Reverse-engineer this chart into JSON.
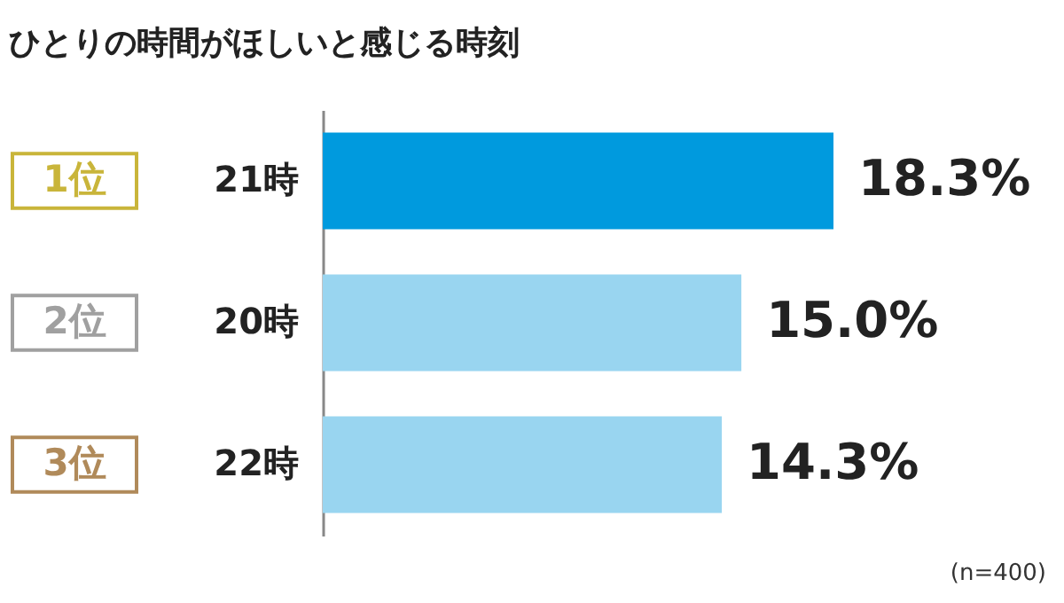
{
  "chart_data": {
    "type": "bar",
    "orientation": "horizontal",
    "title": "ひとりの時間がほしいと感じる時刻",
    "categories": [
      "21時",
      "20時",
      "22時"
    ],
    "values": [
      18.3,
      15.0,
      14.3
    ],
    "colors": [
      "#009ade",
      "#99d5f0",
      "#99d5f0"
    ],
    "value_labels": [
      "18.3%",
      "15.0%",
      "14.3%"
    ],
    "tick_labels": "y",
    "annotations": [
      "1位",
      "2位",
      "3位",
      "(n=400)"
    ]
  }
}
